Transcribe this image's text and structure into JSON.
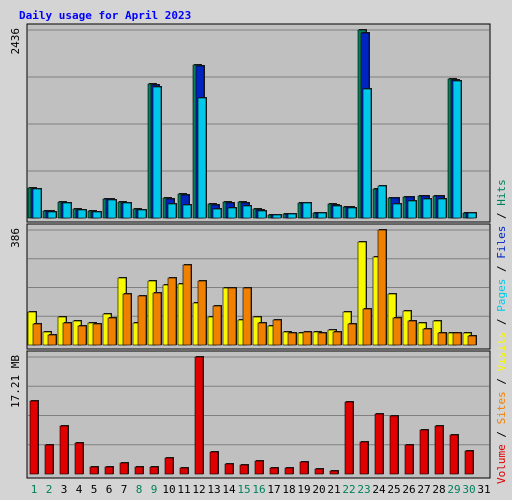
{
  "title": "Daily usage for April 2023",
  "colors": {
    "hits": "#00805c",
    "files": "#0024c0",
    "pages": "#00c8e8",
    "visits": "#f8f800",
    "sites": "#f08000",
    "kbytes": "#e00000",
    "weekend": "#00805c",
    "weekday": "#000000",
    "title": "#0000ff",
    "panel_bg": "#c0c0c0",
    "gridline": "#808080"
  },
  "chart_data": {
    "type": "bar",
    "title": "Daily usage for April 2023",
    "categories": [
      "1",
      "2",
      "3",
      "4",
      "5",
      "6",
      "7",
      "8",
      "9",
      "10",
      "11",
      "12",
      "13",
      "14",
      "15",
      "16",
      "17",
      "18",
      "19",
      "20",
      "21",
      "22",
      "23",
      "24",
      "25",
      "26",
      "27",
      "28",
      "29",
      "30",
      "31"
    ],
    "weekend_days": [
      "1",
      "2",
      "8",
      "9",
      "15",
      "16",
      "22",
      "23",
      "29",
      "30"
    ],
    "panels": [
      {
        "name": "hits-files-pages",
        "scale_label": "2436",
        "max": 2436,
        "series": [
          {
            "name": "Hits",
            "color": "#00805c",
            "values": [
              390,
              90,
              210,
              115,
              85,
              245,
              210,
              115,
              1730,
              255,
              305,
              1980,
              175,
              205,
              205,
              115,
              45,
              55,
              195,
              65,
              175,
              145,
              2436,
              370,
              265,
              275,
              290,
              285,
              1800,
              70,
              0
            ]
          },
          {
            "name": "Files",
            "color": "#0024c0",
            "values": [
              380,
              85,
              200,
              110,
              80,
              240,
              200,
              110,
              1720,
              250,
              300,
              1970,
              170,
              200,
              200,
              110,
              40,
              50,
              190,
              60,
              170,
              140,
              2400,
              365,
              260,
              270,
              285,
              280,
              1790,
              65,
              0
            ]
          },
          {
            "name": "Pages",
            "color": "#00c8e8",
            "values": [
              370,
              80,
              195,
              105,
              75,
              235,
              190,
              105,
              1700,
              180,
              170,
              1550,
              120,
              130,
              160,
              90,
              45,
              55,
              190,
              60,
              160,
              135,
              1670,
              410,
              180,
              225,
              240,
              250,
              1780,
              60,
              0
            ]
          }
        ]
      },
      {
        "name": "visits-sites",
        "scale_label": "386",
        "max": 386,
        "series": [
          {
            "name": "Visits",
            "color": "#f8f800",
            "values": [
              110,
              45,
              95,
              80,
              75,
              105,
              225,
              75,
              215,
              200,
              205,
              140,
              95,
              190,
              85,
              95,
              65,
              45,
              40,
              45,
              50,
              110,
              345,
              295,
              170,
              115,
              75,
              80,
              40,
              40,
              0
            ]
          },
          {
            "name": "Sites",
            "color": "#f08000",
            "values": [
              70,
              35,
              75,
              65,
              70,
              90,
              170,
              165,
              175,
              225,
              270,
              215,
              130,
              190,
              190,
              75,
              85,
              40,
              45,
              40,
              45,
              70,
              120,
              386,
              90,
              80,
              55,
              40,
              40,
              30,
              0
            ]
          }
        ]
      },
      {
        "name": "volume",
        "scale_label": "17.21 MB",
        "max": 17.21,
        "series": [
          {
            "name": "Volume",
            "color": "#e00000",
            "values": [
              10.8,
              4.3,
              7.1,
              4.6,
              1.0,
              1.0,
              1.6,
              1.1,
              1.0,
              2.4,
              0.9,
              17.21,
              3.3,
              1.4,
              1.3,
              1.9,
              0.9,
              0.9,
              1.8,
              0.7,
              0.5,
              10.6,
              4.7,
              8.8,
              8.5,
              4.2,
              6.4,
              7.1,
              5.8,
              3.4,
              0
            ]
          }
        ]
      }
    ],
    "legend": [
      "Volume",
      "Sites",
      "Visits",
      "Pages",
      "Files",
      "Hits"
    ],
    "legend_colors": [
      "#e00000",
      "#f08000",
      "#f8f800",
      "#00c8e8",
      "#0024c0",
      "#00805c"
    ],
    "grid": true,
    "legend_position": "right-vertical"
  }
}
